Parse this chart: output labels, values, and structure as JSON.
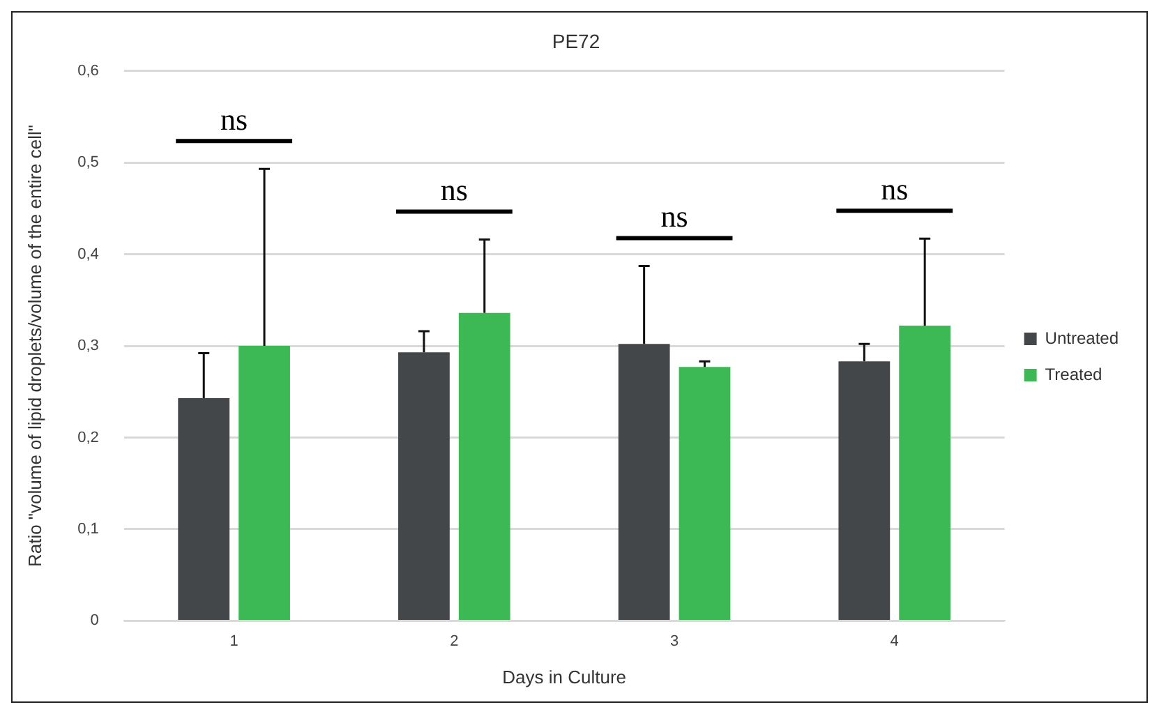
{
  "chart_data": {
    "type": "bar",
    "title": "PE72",
    "xlabel": "Days in Culture",
    "ylabel": "Ratio \"volume of lipid droplets/volume of the entire cell\"",
    "categories": [
      "1",
      "2",
      "3",
      "4"
    ],
    "series": [
      {
        "name": "Untreated",
        "color": "#44474a",
        "values": [
          0.243,
          0.293,
          0.302,
          0.283
        ],
        "errors": [
          [
            0.243,
            0.292
          ],
          [
            0.293,
            0.316
          ],
          [
            0.302,
            0.387
          ],
          [
            0.283,
            0.302
          ]
        ]
      },
      {
        "name": "Treated",
        "color": "#3cb854",
        "values": [
          0.3,
          0.336,
          0.277,
          0.322
        ],
        "errors": [
          [
            0.3,
            0.493
          ],
          [
            0.336,
            0.416
          ],
          [
            0.277,
            0.283
          ],
          [
            0.322,
            0.417
          ]
        ]
      }
    ],
    "ylim": [
      0,
      0.6
    ],
    "yticks": [
      {
        "value": 0,
        "label": "0"
      },
      {
        "value": 0.1,
        "label": "0,1"
      },
      {
        "value": 0.2,
        "label": "0,2"
      },
      {
        "value": 0.3,
        "label": "0,3"
      },
      {
        "value": 0.4,
        "label": "0,4"
      },
      {
        "value": 0.5,
        "label": "0,5"
      },
      {
        "value": 0.6,
        "label": "0,6"
      }
    ],
    "grid": "y",
    "legend": "right",
    "annotations": [
      "ns",
      "ns",
      "ns",
      "ns"
    ]
  }
}
